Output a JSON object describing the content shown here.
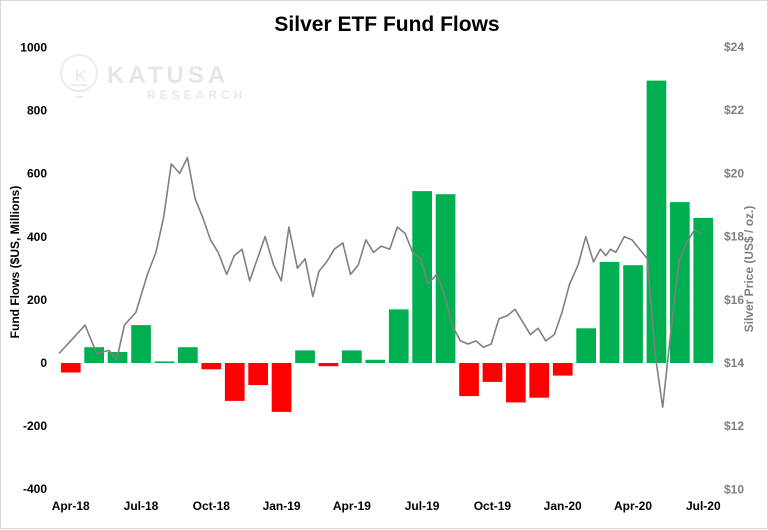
{
  "chart_data": {
    "type": "bar+line",
    "title": "Silver ETF Fund Flows",
    "ylabel_left": "Fund Flows ($US, Millions)",
    "ylabel_right": "Silver Price (US$ / oz.)",
    "ylim_left": [
      -400,
      1000
    ],
    "ylim_right": [
      10,
      24
    ],
    "left_ticks": [
      "1000",
      "800",
      "600",
      "400",
      "200",
      "0",
      "-200",
      "-400"
    ],
    "right_ticks": [
      "$24",
      "$22",
      "$20",
      "$18",
      "$16",
      "$14",
      "$12",
      "$10"
    ],
    "x_tick_labels": [
      "Apr-18",
      "Jul-18",
      "Oct-18",
      "Jan-19",
      "Apr-19",
      "Jul-19",
      "Oct-19",
      "Jan-20",
      "Apr-20",
      "Jul-20"
    ],
    "grid": false,
    "bar_series": {
      "name": "Fund Flows",
      "positive_color": "#00b050",
      "negative_color": "#ff0000",
      "categories": [
        "Apr-18",
        "May-18",
        "Jun-18",
        "Jul-18",
        "Aug-18",
        "Sep-18",
        "Oct-18",
        "Nov-18",
        "Dec-18",
        "Jan-19",
        "Feb-19",
        "Mar-19",
        "Apr-19",
        "May-19",
        "Jun-19",
        "Jul-19",
        "Aug-19",
        "Sep-19",
        "Oct-19",
        "Nov-19",
        "Dec-19",
        "Jan-20",
        "Feb-20",
        "Mar-20",
        "Apr-20",
        "May-20",
        "Jun-20",
        "Jul-20"
      ],
      "values": [
        -30,
        50,
        35,
        120,
        5,
        50,
        -20,
        -120,
        -70,
        -155,
        40,
        -10,
        40,
        10,
        170,
        545,
        535,
        -105,
        -60,
        -125,
        -110,
        -40,
        110,
        320,
        310,
        895,
        510,
        460
      ]
    },
    "line_series": {
      "name": "Silver Price",
      "color": "#808080",
      "dates": [
        "2018-04-01",
        "2018-04-20",
        "2018-05-05",
        "2018-05-20",
        "2018-06-05",
        "2018-06-15",
        "2018-06-25",
        "2018-07-10",
        "2018-07-25",
        "2018-08-05",
        "2018-08-15",
        "2018-08-25",
        "2018-09-05",
        "2018-09-15",
        "2018-09-25",
        "2018-10-05",
        "2018-10-15",
        "2018-10-25",
        "2018-11-05",
        "2018-11-15",
        "2018-11-25",
        "2018-12-05",
        "2018-12-15",
        "2018-12-25",
        "2019-01-05",
        "2019-01-15",
        "2019-01-25",
        "2019-02-05",
        "2019-02-15",
        "2019-02-25",
        "2019-03-05",
        "2019-03-15",
        "2019-03-25",
        "2019-04-05",
        "2019-04-15",
        "2019-04-25",
        "2019-05-05",
        "2019-05-15",
        "2019-05-25",
        "2019-06-05",
        "2019-06-15",
        "2019-06-25",
        "2019-07-05",
        "2019-07-15",
        "2019-07-25",
        "2019-08-05",
        "2019-08-15",
        "2019-08-25",
        "2019-09-05",
        "2019-09-15",
        "2019-09-25",
        "2019-10-05",
        "2019-10-15",
        "2019-10-25",
        "2019-11-05",
        "2019-11-15",
        "2019-11-25",
        "2019-12-05",
        "2019-12-15",
        "2019-12-25",
        "2020-01-05",
        "2020-01-15",
        "2020-01-25",
        "2020-02-05",
        "2020-02-15",
        "2020-02-25",
        "2020-03-05",
        "2020-03-12",
        "2020-03-18",
        "2020-03-25",
        "2020-04-05",
        "2020-04-15",
        "2020-04-25",
        "2020-05-05",
        "2020-05-15",
        "2020-05-25",
        "2020-06-05",
        "2020-06-15",
        "2020-06-25",
        "2020-07-05",
        "2020-07-15"
      ],
      "values": [
        14.3,
        14.8,
        15.2,
        14.3,
        14.4,
        14.1,
        15.2,
        15.6,
        16.8,
        17.5,
        18.6,
        20.3,
        20.0,
        20.5,
        19.2,
        18.6,
        17.9,
        17.5,
        16.8,
        17.4,
        17.6,
        16.6,
        17.3,
        18.0,
        17.1,
        16.6,
        18.3,
        17.0,
        17.3,
        16.1,
        16.9,
        17.2,
        17.6,
        17.8,
        16.8,
        17.1,
        17.9,
        17.5,
        17.7,
        17.6,
        18.3,
        18.1,
        17.5,
        17.3,
        16.5,
        16.8,
        16.2,
        15.2,
        14.7,
        14.6,
        14.7,
        14.5,
        14.6,
        15.4,
        15.5,
        15.7,
        15.3,
        14.9,
        15.1,
        14.7,
        14.9,
        15.6,
        16.5,
        17.1,
        18.0,
        17.2,
        17.6,
        17.4,
        17.6,
        17.5,
        18.0,
        17.9,
        17.6,
        17.3,
        14.3,
        12.6,
        15.1,
        17.2,
        17.8,
        18.2,
        18.1
      ]
    }
  }
}
